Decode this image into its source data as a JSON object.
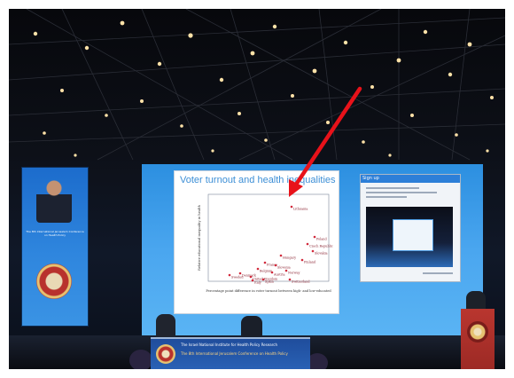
{
  "slide": {
    "title": "Voter turnout and health inequalities",
    "y_axis_label": "Relative educational inequality in health",
    "x_axis_label": "Percentage point difference in voter turnout between high- and low-educated",
    "points": [
      {
        "label": "Lithuania"
      },
      {
        "label": "Poland"
      },
      {
        "label": "Czech Republic"
      },
      {
        "label": "Slovakia"
      },
      {
        "label": "Hungary"
      },
      {
        "label": "Finland"
      },
      {
        "label": "France"
      },
      {
        "label": "Belgium"
      },
      {
        "label": "Austria"
      },
      {
        "label": "Denmark"
      },
      {
        "label": "Sweden"
      },
      {
        "label": "United Kingdom"
      },
      {
        "label": "Italy"
      },
      {
        "label": "Spain"
      },
      {
        "label": "Switzerland"
      },
      {
        "label": "Slovenia"
      },
      {
        "label": "Norway"
      }
    ]
  },
  "side_panel": {
    "header": "Sign up"
  },
  "banner": {
    "line1": "The Israel National Institute for Health Policy Research",
    "line2": "The 8th International Jerusalem Conference on Health Policy"
  },
  "left_screen": {
    "title": "The 8th International Jerusalem Conference on Health Policy"
  },
  "colors": {
    "arrow": "#e8121a",
    "slide_title": "#3d8fd6",
    "points": "#d22a3c",
    "led_wall": "#3a9ae8"
  }
}
